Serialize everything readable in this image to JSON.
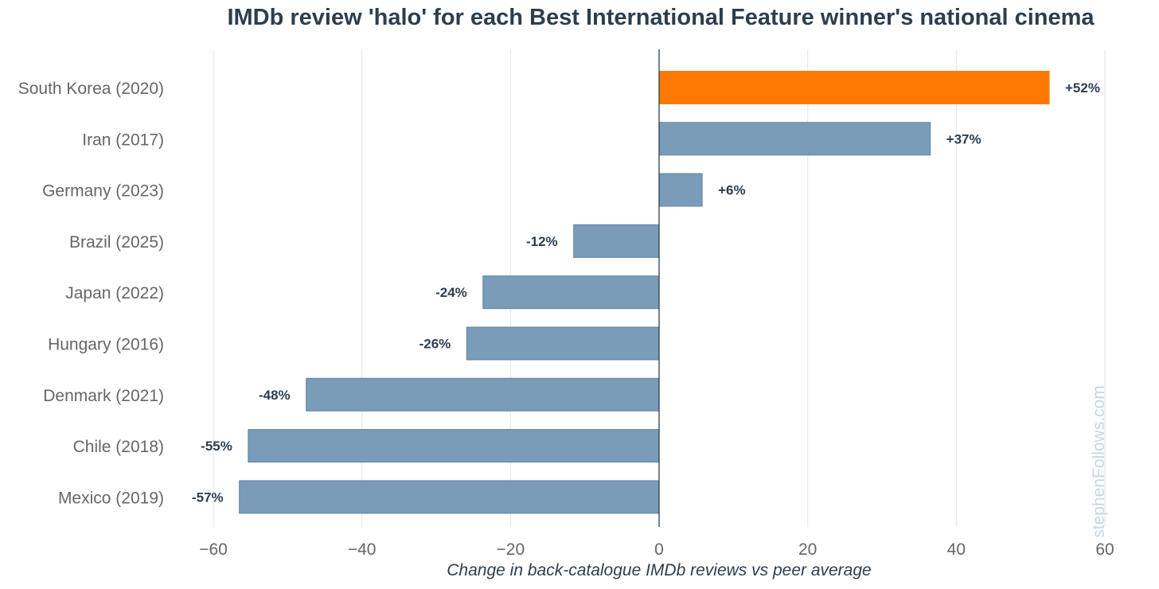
{
  "chart_data": {
    "type": "bar",
    "orientation": "horizontal",
    "title": "IMDb review 'halo' for each Best International Feature winner's national cinema",
    "xlabel": "Change in back-catalogue IMDb reviews vs peer average",
    "ylabel": "",
    "xlim": [
      -60,
      60
    ],
    "xticks": [
      -60,
      -40,
      -20,
      0,
      20,
      40,
      60
    ],
    "xtick_labels": [
      "−60",
      "−40",
      "−20",
      "0",
      "20",
      "40",
      "60"
    ],
    "grid": true,
    "categories": [
      "South Korea (2020)",
      "Iran (2017)",
      "Germany (2023)",
      "Brazil (2025)",
      "Japan (2022)",
      "Hungary (2016)",
      "Denmark (2021)",
      "Chile (2018)",
      "Mexico (2019)"
    ],
    "values": [
      52.5,
      36.5,
      5.8,
      -11.5,
      -23.7,
      -25.9,
      -47.5,
      -55.3,
      -56.5
    ],
    "value_labels": [
      "+52%",
      "+37%",
      "+6%",
      "-12%",
      "-24%",
      "-26%",
      "-48%",
      "-55%",
      "-57%"
    ],
    "highlight_index": 0,
    "colors": {
      "bar": "#7a9cb8",
      "bar_stroke": "#5f83a2",
      "highlight": "#ff7800",
      "label": "#2c3e50",
      "grid": "#e6e6e6",
      "zero_line": "#2c3e50"
    }
  },
  "watermark": "stephenFollows.com"
}
